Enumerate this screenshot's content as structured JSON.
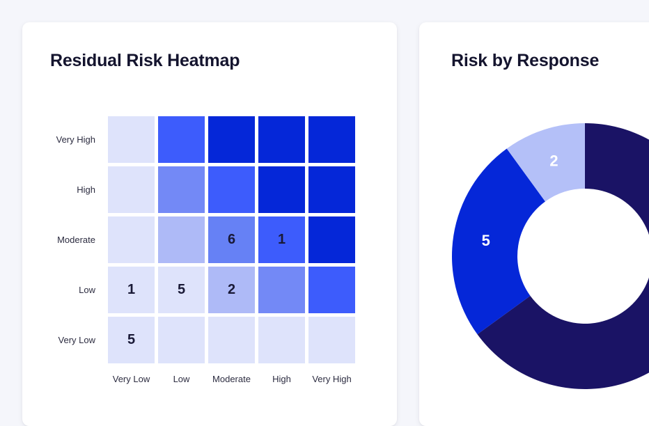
{
  "page": {
    "background_color": "#f5f6fb",
    "card_background_color": "#ffffff",
    "title_color": "#14142e",
    "axis_label_color": "#2c2c40"
  },
  "chart_data": [
    {
      "type": "heatmap",
      "title": "Residual Risk Heatmap",
      "x_labels": [
        "Very Low",
        "Low",
        "Moderate",
        "High",
        "Very High"
      ],
      "y_labels": [
        "Very High",
        "High",
        "Moderate",
        "Low",
        "Very Low"
      ],
      "value_text_color": "#191936",
      "cells": [
        [
          {
            "color": "#dee3fb",
            "value": ""
          },
          {
            "color": "#3d5cfc",
            "value": ""
          },
          {
            "color": "#0527d8",
            "value": ""
          },
          {
            "color": "#0527d8",
            "value": ""
          },
          {
            "color": "#0527d8",
            "value": ""
          }
        ],
        [
          {
            "color": "#dee3fb",
            "value": ""
          },
          {
            "color": "#7389f6",
            "value": ""
          },
          {
            "color": "#3d5cfc",
            "value": ""
          },
          {
            "color": "#0527d8",
            "value": ""
          },
          {
            "color": "#0527d8",
            "value": ""
          }
        ],
        [
          {
            "color": "#dee3fb",
            "value": ""
          },
          {
            "color": "#aebaf7",
            "value": ""
          },
          {
            "color": "#6681f5",
            "value": "6"
          },
          {
            "color": "#3d5cfc",
            "value": "1"
          },
          {
            "color": "#0527d8",
            "value": ""
          }
        ],
        [
          {
            "color": "#dee3fb",
            "value": "1"
          },
          {
            "color": "#dee3fb",
            "value": "5"
          },
          {
            "color": "#aebaf7",
            "value": "2"
          },
          {
            "color": "#7389f6",
            "value": ""
          },
          {
            "color": "#3d5cfc",
            "value": ""
          }
        ],
        [
          {
            "color": "#dee3fb",
            "value": "5"
          },
          {
            "color": "#dee3fb",
            "value": ""
          },
          {
            "color": "#dee3fb",
            "value": ""
          },
          {
            "color": "#dee3fb",
            "value": ""
          },
          {
            "color": "#dee3fb",
            "value": ""
          }
        ]
      ]
    },
    {
      "type": "pie",
      "subtype": "donut",
      "title": "Risk by Response",
      "total": 20,
      "label_color": "#ffffff",
      "segments_clockwise_from_top": [
        {
          "value": 13,
          "color": "#1a1365"
        },
        {
          "value": 5,
          "color": "#0527d8"
        },
        {
          "value": 2,
          "color": "#b4c0f8"
        }
      ]
    }
  ]
}
